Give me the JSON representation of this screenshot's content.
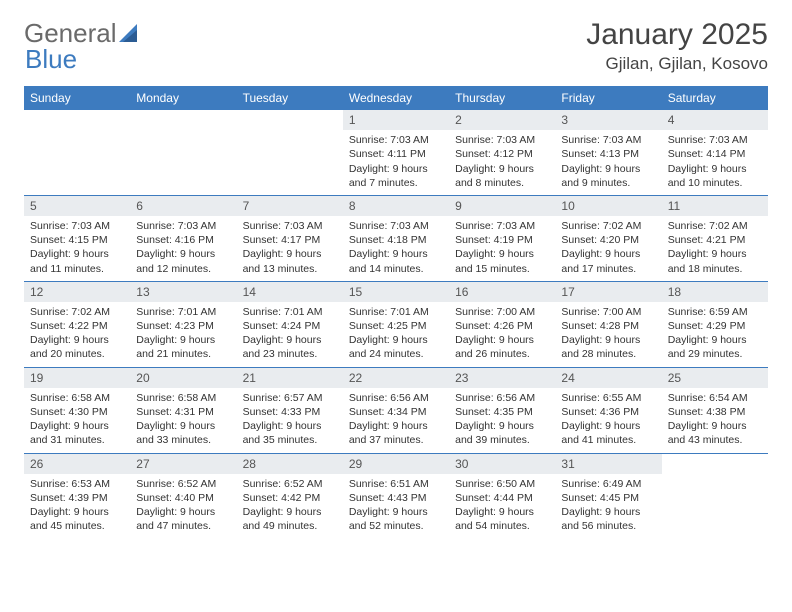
{
  "logo": {
    "text1": "General",
    "text2": "Blue"
  },
  "header": {
    "title": "January 2025",
    "location": "Gjilan, Gjilan, Kosovo"
  },
  "colors": {
    "header_bar": "#3d7bbf",
    "daynum_bg": "#e9ecef",
    "text": "#333333",
    "logo_gray": "#6a6a6a",
    "logo_blue": "#3d7bbf",
    "background": "#ffffff"
  },
  "typography": {
    "title_fontsize": 30,
    "location_fontsize": 17,
    "dayheader_fontsize": 12,
    "cell_fontsize": 10.5,
    "logo_fontsize": 26
  },
  "dayNames": [
    "Sunday",
    "Monday",
    "Tuesday",
    "Wednesday",
    "Thursday",
    "Friday",
    "Saturday"
  ],
  "weeks": [
    [
      {
        "day": "",
        "lines": [
          "",
          "",
          "",
          ""
        ]
      },
      {
        "day": "",
        "lines": [
          "",
          "",
          "",
          ""
        ]
      },
      {
        "day": "",
        "lines": [
          "",
          "",
          "",
          ""
        ]
      },
      {
        "day": "1",
        "lines": [
          "Sunrise: 7:03 AM",
          "Sunset: 4:11 PM",
          "Daylight: 9 hours",
          "and 7 minutes."
        ]
      },
      {
        "day": "2",
        "lines": [
          "Sunrise: 7:03 AM",
          "Sunset: 4:12 PM",
          "Daylight: 9 hours",
          "and 8 minutes."
        ]
      },
      {
        "day": "3",
        "lines": [
          "Sunrise: 7:03 AM",
          "Sunset: 4:13 PM",
          "Daylight: 9 hours",
          "and 9 minutes."
        ]
      },
      {
        "day": "4",
        "lines": [
          "Sunrise: 7:03 AM",
          "Sunset: 4:14 PM",
          "Daylight: 9 hours",
          "and 10 minutes."
        ]
      }
    ],
    [
      {
        "day": "5",
        "lines": [
          "Sunrise: 7:03 AM",
          "Sunset: 4:15 PM",
          "Daylight: 9 hours",
          "and 11 minutes."
        ]
      },
      {
        "day": "6",
        "lines": [
          "Sunrise: 7:03 AM",
          "Sunset: 4:16 PM",
          "Daylight: 9 hours",
          "and 12 minutes."
        ]
      },
      {
        "day": "7",
        "lines": [
          "Sunrise: 7:03 AM",
          "Sunset: 4:17 PM",
          "Daylight: 9 hours",
          "and 13 minutes."
        ]
      },
      {
        "day": "8",
        "lines": [
          "Sunrise: 7:03 AM",
          "Sunset: 4:18 PM",
          "Daylight: 9 hours",
          "and 14 minutes."
        ]
      },
      {
        "day": "9",
        "lines": [
          "Sunrise: 7:03 AM",
          "Sunset: 4:19 PM",
          "Daylight: 9 hours",
          "and 15 minutes."
        ]
      },
      {
        "day": "10",
        "lines": [
          "Sunrise: 7:02 AM",
          "Sunset: 4:20 PM",
          "Daylight: 9 hours",
          "and 17 minutes."
        ]
      },
      {
        "day": "11",
        "lines": [
          "Sunrise: 7:02 AM",
          "Sunset: 4:21 PM",
          "Daylight: 9 hours",
          "and 18 minutes."
        ]
      }
    ],
    [
      {
        "day": "12",
        "lines": [
          "Sunrise: 7:02 AM",
          "Sunset: 4:22 PM",
          "Daylight: 9 hours",
          "and 20 minutes."
        ]
      },
      {
        "day": "13",
        "lines": [
          "Sunrise: 7:01 AM",
          "Sunset: 4:23 PM",
          "Daylight: 9 hours",
          "and 21 minutes."
        ]
      },
      {
        "day": "14",
        "lines": [
          "Sunrise: 7:01 AM",
          "Sunset: 4:24 PM",
          "Daylight: 9 hours",
          "and 23 minutes."
        ]
      },
      {
        "day": "15",
        "lines": [
          "Sunrise: 7:01 AM",
          "Sunset: 4:25 PM",
          "Daylight: 9 hours",
          "and 24 minutes."
        ]
      },
      {
        "day": "16",
        "lines": [
          "Sunrise: 7:00 AM",
          "Sunset: 4:26 PM",
          "Daylight: 9 hours",
          "and 26 minutes."
        ]
      },
      {
        "day": "17",
        "lines": [
          "Sunrise: 7:00 AM",
          "Sunset: 4:28 PM",
          "Daylight: 9 hours",
          "and 28 minutes."
        ]
      },
      {
        "day": "18",
        "lines": [
          "Sunrise: 6:59 AM",
          "Sunset: 4:29 PM",
          "Daylight: 9 hours",
          "and 29 minutes."
        ]
      }
    ],
    [
      {
        "day": "19",
        "lines": [
          "Sunrise: 6:58 AM",
          "Sunset: 4:30 PM",
          "Daylight: 9 hours",
          "and 31 minutes."
        ]
      },
      {
        "day": "20",
        "lines": [
          "Sunrise: 6:58 AM",
          "Sunset: 4:31 PM",
          "Daylight: 9 hours",
          "and 33 minutes."
        ]
      },
      {
        "day": "21",
        "lines": [
          "Sunrise: 6:57 AM",
          "Sunset: 4:33 PM",
          "Daylight: 9 hours",
          "and 35 minutes."
        ]
      },
      {
        "day": "22",
        "lines": [
          "Sunrise: 6:56 AM",
          "Sunset: 4:34 PM",
          "Daylight: 9 hours",
          "and 37 minutes."
        ]
      },
      {
        "day": "23",
        "lines": [
          "Sunrise: 6:56 AM",
          "Sunset: 4:35 PM",
          "Daylight: 9 hours",
          "and 39 minutes."
        ]
      },
      {
        "day": "24",
        "lines": [
          "Sunrise: 6:55 AM",
          "Sunset: 4:36 PM",
          "Daylight: 9 hours",
          "and 41 minutes."
        ]
      },
      {
        "day": "25",
        "lines": [
          "Sunrise: 6:54 AM",
          "Sunset: 4:38 PM",
          "Daylight: 9 hours",
          "and 43 minutes."
        ]
      }
    ],
    [
      {
        "day": "26",
        "lines": [
          "Sunrise: 6:53 AM",
          "Sunset: 4:39 PM",
          "Daylight: 9 hours",
          "and 45 minutes."
        ]
      },
      {
        "day": "27",
        "lines": [
          "Sunrise: 6:52 AM",
          "Sunset: 4:40 PM",
          "Daylight: 9 hours",
          "and 47 minutes."
        ]
      },
      {
        "day": "28",
        "lines": [
          "Sunrise: 6:52 AM",
          "Sunset: 4:42 PM",
          "Daylight: 9 hours",
          "and 49 minutes."
        ]
      },
      {
        "day": "29",
        "lines": [
          "Sunrise: 6:51 AM",
          "Sunset: 4:43 PM",
          "Daylight: 9 hours",
          "and 52 minutes."
        ]
      },
      {
        "day": "30",
        "lines": [
          "Sunrise: 6:50 AM",
          "Sunset: 4:44 PM",
          "Daylight: 9 hours",
          "and 54 minutes."
        ]
      },
      {
        "day": "31",
        "lines": [
          "Sunrise: 6:49 AM",
          "Sunset: 4:45 PM",
          "Daylight: 9 hours",
          "and 56 minutes."
        ]
      },
      {
        "day": "",
        "lines": [
          "",
          "",
          "",
          ""
        ]
      }
    ]
  ]
}
